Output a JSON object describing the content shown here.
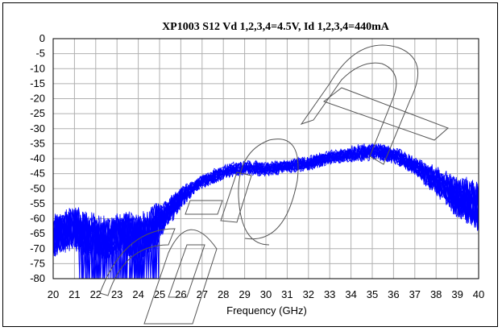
{
  "chart_data": {
    "type": "line",
    "title": "XP1003  S12 Vd 1,2,3,4=4.5V, Id 1,2,3,4=440mA",
    "xlabel": "Frequency (GHz)",
    "ylabel": "",
    "xlim": [
      20,
      40
    ],
    "ylim": [
      -80,
      0
    ],
    "x_ticks": [
      "20",
      "21",
      "22",
      "23",
      "24",
      "25",
      "26",
      "27",
      "28",
      "29",
      "30",
      "31",
      "32",
      "33",
      "34",
      "35",
      "36",
      "37",
      "38",
      "39",
      "40"
    ],
    "y_ticks": [
      "0",
      "-5",
      "-10",
      "-15",
      "-20",
      "-25",
      "-30",
      "-35",
      "-40",
      "-45",
      "-50",
      "-55",
      "-60",
      "-65",
      "-70",
      "-75",
      "-80"
    ],
    "grid": true,
    "legend": "none",
    "series_color": "#0000ff",
    "overlaid_traces": 16,
    "series": [
      {
        "x": [
          20,
          20.5,
          21,
          21.5,
          22,
          22.5,
          23,
          23.5,
          24,
          24.5,
          25,
          25.5,
          26,
          26.5,
          27,
          27.5,
          28,
          28.5,
          29,
          29.5,
          30,
          30.5,
          31,
          31.5,
          32,
          32.5,
          33,
          33.5,
          34,
          34.5,
          35,
          35.5,
          36,
          36.5,
          37,
          37.5,
          38,
          38.5,
          39,
          39.5,
          40
        ],
        "y": [
          -66,
          -64,
          -63,
          -65,
          -66,
          -67,
          -66,
          -65,
          -66,
          -64,
          -61,
          -57,
          -53,
          -50,
          -47.5,
          -46,
          -44.5,
          -43.5,
          -43,
          -43,
          -43.5,
          -43,
          -42.5,
          -42,
          -41.5,
          -40.5,
          -39.5,
          -39,
          -38.5,
          -38,
          -37.5,
          -38,
          -39,
          -40.5,
          -42.5,
          -45,
          -47.5,
          -50,
          -53,
          -54,
          -56
        ]
      }
    ]
  },
  "watermark_text": "Caption"
}
